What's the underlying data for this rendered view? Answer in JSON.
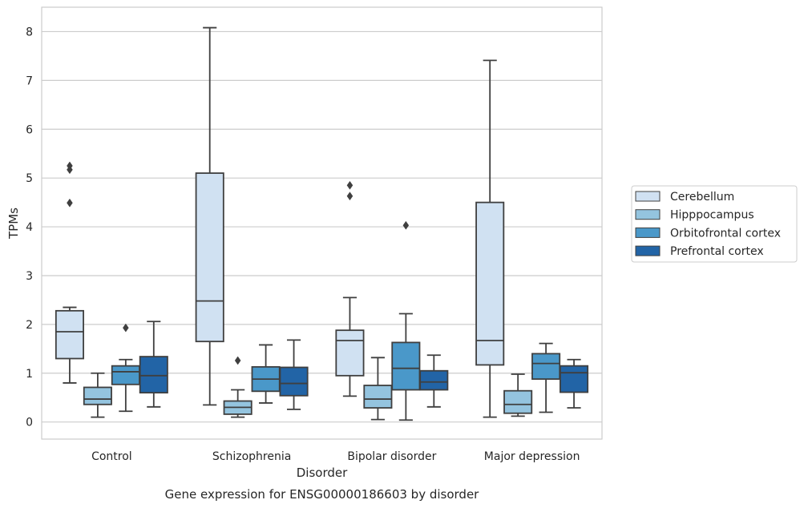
{
  "chart_data": {
    "type": "boxplot",
    "caption": "Gene expression for ENSG00000186603 by disorder",
    "xlabel": "Disorder",
    "ylabel": "TPMs",
    "ylim": [
      -0.35,
      8.5
    ],
    "yticks": [
      0,
      1,
      2,
      3,
      4,
      5,
      6,
      7,
      8
    ],
    "grid": "horizontal",
    "legend_position": "right",
    "categories": [
      "Control",
      "Schizophrenia",
      "Bipolar disorder",
      "Major depression"
    ],
    "series": [
      {
        "name": "Cerebellum",
        "color": "#d0e1f2",
        "boxes": [
          {
            "whislo": 0.8,
            "q1": 1.3,
            "med": 1.85,
            "q3": 2.28,
            "whishi": 2.35,
            "fliers": [
              5.25,
              5.17,
              4.49
            ]
          },
          {
            "whislo": 0.35,
            "q1": 1.65,
            "med": 2.48,
            "q3": 5.1,
            "whishi": 8.08,
            "fliers": []
          },
          {
            "whislo": 0.53,
            "q1": 0.95,
            "med": 1.67,
            "q3": 1.88,
            "whishi": 2.55,
            "fliers": [
              4.85,
              4.63
            ]
          },
          {
            "whislo": 0.1,
            "q1": 1.17,
            "med": 1.67,
            "q3": 4.5,
            "whishi": 7.41,
            "fliers": []
          }
        ]
      },
      {
        "name": "Hipppocampus",
        "color": "#94c4df",
        "boxes": [
          {
            "whislo": 0.1,
            "q1": 0.36,
            "med": 0.47,
            "q3": 0.71,
            "whishi": 1.0,
            "fliers": []
          },
          {
            "whislo": 0.1,
            "q1": 0.16,
            "med": 0.3,
            "q3": 0.43,
            "whishi": 0.66,
            "fliers": [
              1.26
            ]
          },
          {
            "whislo": 0.05,
            "q1": 0.29,
            "med": 0.47,
            "q3": 0.75,
            "whishi": 1.32,
            "fliers": []
          },
          {
            "whislo": 0.12,
            "q1": 0.18,
            "med": 0.36,
            "q3": 0.64,
            "whishi": 0.98,
            "fliers": []
          }
        ]
      },
      {
        "name": "Orbitofrontal cortex",
        "color": "#4a98c9",
        "boxes": [
          {
            "whislo": 0.22,
            "q1": 0.77,
            "med": 1.03,
            "q3": 1.15,
            "whishi": 1.28,
            "fliers": [
              1.93
            ]
          },
          {
            "whislo": 0.39,
            "q1": 0.63,
            "med": 0.88,
            "q3": 1.13,
            "whishi": 1.58,
            "fliers": []
          },
          {
            "whislo": 0.04,
            "q1": 0.66,
            "med": 1.1,
            "q3": 1.63,
            "whishi": 2.22,
            "fliers": [
              4.03
            ]
          },
          {
            "whislo": 0.2,
            "q1": 0.88,
            "med": 1.2,
            "q3": 1.4,
            "whishi": 1.61,
            "fliers": []
          }
        ]
      },
      {
        "name": "Prefrontal cortex",
        "color": "#2264a6",
        "boxes": [
          {
            "whislo": 0.31,
            "q1": 0.6,
            "med": 0.95,
            "q3": 1.34,
            "whishi": 2.06,
            "fliers": []
          },
          {
            "whislo": 0.26,
            "q1": 0.54,
            "med": 0.79,
            "q3": 1.12,
            "whishi": 1.68,
            "fliers": []
          },
          {
            "whislo": 0.31,
            "q1": 0.66,
            "med": 0.82,
            "q3": 1.05,
            "whishi": 1.37,
            "fliers": []
          },
          {
            "whislo": 0.29,
            "q1": 0.61,
            "med": 1.01,
            "q3": 1.15,
            "whishi": 1.28,
            "fliers": []
          }
        ]
      }
    ]
  }
}
